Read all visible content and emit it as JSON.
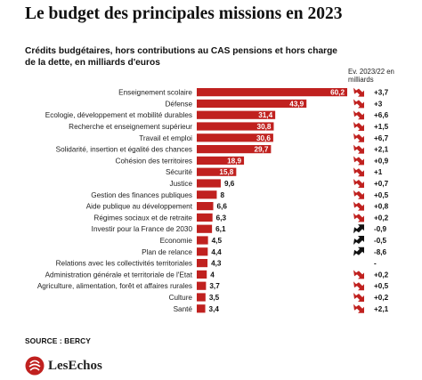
{
  "title": "Le budget des principales missions en 2023",
  "subtitle": "Crédits budgétaires, hors contributions au CAS pensions et hors charge de la dette, en milliards d'euros",
  "change_header": "Ev. 2023/22 en milliards",
  "source": "SOURCE : BERCY",
  "brand": "LesEchos",
  "colors": {
    "bar": "#c0211f",
    "up_arrow": "#c0211f",
    "down_arrow": "#111111"
  },
  "chart_data": {
    "type": "bar",
    "orientation": "horizontal",
    "xlim": [
      0,
      60.2
    ],
    "categories": [
      "Enseignement scolaire",
      "Défense",
      "Ecologie, développement et mobilité durables",
      "Recherche et enseignement supérieur",
      "Travail et emploi",
      "Solidarité, insertion et égalité des chances",
      "Cohésion des territoires",
      "Sécurité",
      "Justice",
      "Gestion des finances publiques",
      "Aide publique au développement",
      "Régimes sociaux et de retraite",
      "Investir pour la France de 2030",
      "Economie",
      "Plan de relance",
      "Relations avec les collectivités territoriales",
      "Administration générale et territoriale de l'Etat",
      "Agriculture, alimentation, forêt et affaires rurales",
      "Culture",
      "Santé"
    ],
    "values": [
      60.2,
      43.9,
      31.4,
      30.8,
      30.6,
      29.7,
      18.9,
      15.8,
      9.6,
      8,
      6.6,
      6.3,
      6.1,
      4.5,
      4.4,
      4.3,
      4,
      3.7,
      3.5,
      3.4
    ],
    "value_labels": [
      "60,2",
      "43,9",
      "31,4",
      "30,8",
      "30,6",
      "29,7",
      "18,9",
      "15,8",
      "9,6",
      "8",
      "6,6",
      "6,3",
      "6,1",
      "4,5",
      "4,4",
      "4,3",
      "4",
      "3,7",
      "3,5",
      "3,4"
    ],
    "changes": [
      3.7,
      3,
      6.6,
      1.5,
      6.7,
      2.1,
      0.9,
      1,
      0.7,
      0.5,
      0.8,
      0.2,
      -0.9,
      -0.5,
      -8.6,
      0,
      0.2,
      0.5,
      0.2,
      2.1
    ],
    "change_labels": [
      "+3,7",
      "+3",
      "+6,6",
      "+1,5",
      "+6,7",
      "+2,1",
      "+0,9",
      "+1",
      "+0,7",
      "+0,5",
      "+0,8",
      "+0,2",
      "-0,9",
      "-0,5",
      "-8,6",
      "-",
      "+0,2",
      "+0,5",
      "+0,2",
      "+2,1"
    ],
    "change_direction": [
      "up",
      "up",
      "up",
      "up",
      "up",
      "up",
      "up",
      "up",
      "up",
      "up",
      "up",
      "up",
      "down",
      "down",
      "down",
      "none",
      "up",
      "up",
      "up",
      "up"
    ]
  }
}
